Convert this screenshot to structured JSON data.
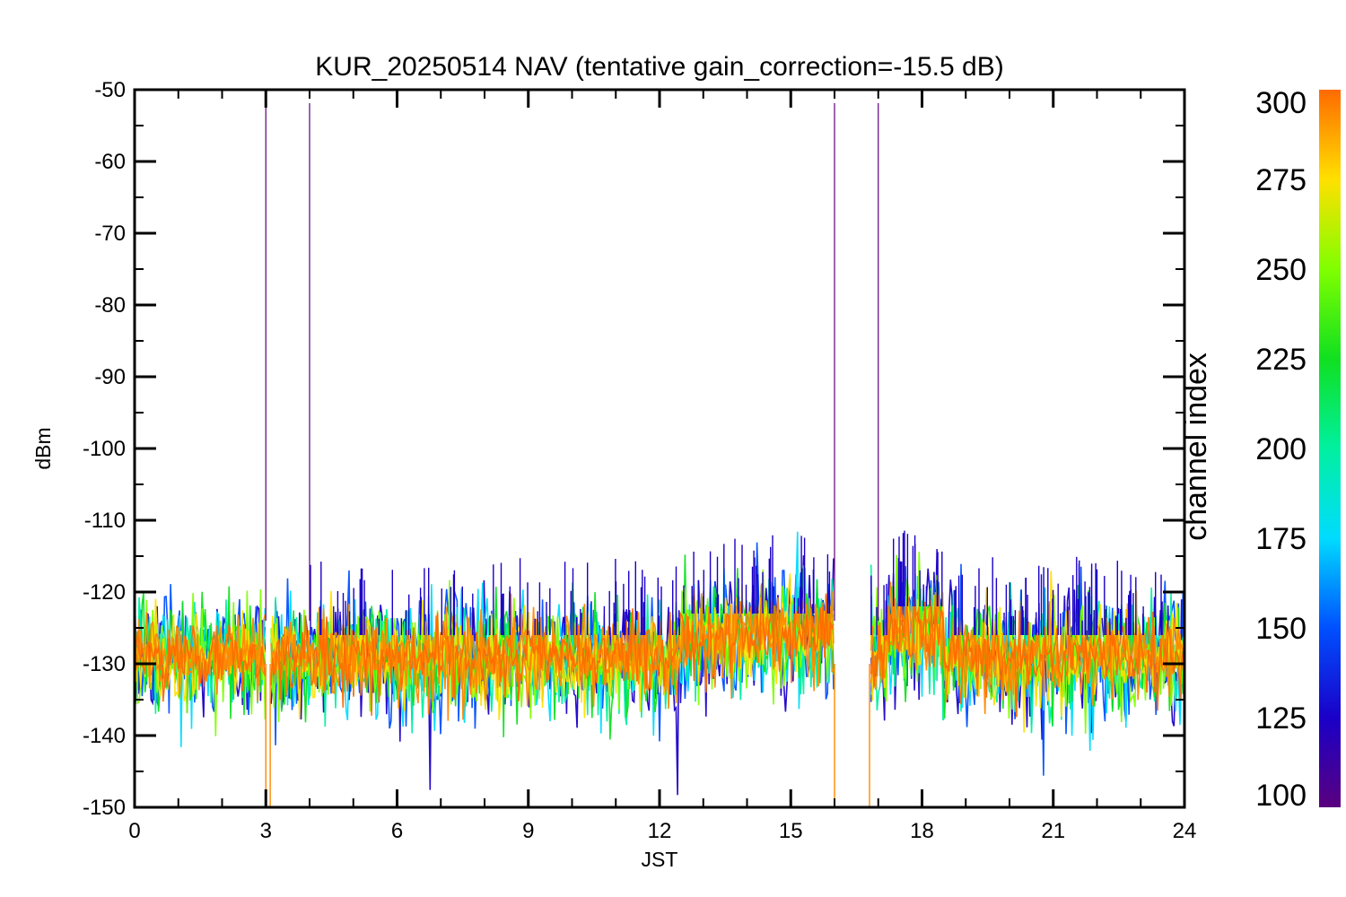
{
  "chart_data": {
    "type": "line",
    "title": "KUR_20250514 NAV (tentative gain_correction=-15.5 dB)",
    "xlabel": "JST",
    "ylabel": "dBm",
    "xlim": [
      0,
      24
    ],
    "ylim": [
      -150,
      -50
    ],
    "xticks": [
      "0",
      "3",
      "6",
      "9",
      "12",
      "15",
      "18",
      "21",
      "24"
    ],
    "yticks": [
      "-50",
      "-60",
      "-70",
      "-80",
      "-90",
      "-100",
      "-110",
      "-120",
      "-130",
      "-140",
      "-150"
    ],
    "colorbar": {
      "label": "channel index",
      "range": [
        100,
        300
      ],
      "ticks": [
        "300",
        "275",
        "250",
        "225",
        "200",
        "175",
        "150",
        "125",
        "100"
      ],
      "colormap": "rainbow"
    },
    "grid": false,
    "series": [
      {
        "channel_range": [
          100,
          300
        ],
        "typical_dBm": -128,
        "spread_dBm": [
          -142,
          -110
        ]
      }
    ],
    "data_gaps_JST": [
      [
        3.0,
        3.1
      ],
      [
        16.0,
        16.8
      ]
    ],
    "vertical_spikes_JST": [
      3.0,
      4.0,
      16.0,
      17.0
    ],
    "level_segments": [
      {
        "x": [
          0,
          12.5
        ],
        "center_dBm": -129
      },
      {
        "x": [
          12.5,
          16.0
        ],
        "center_dBm": -126
      },
      {
        "x": [
          16.8,
          17.2
        ],
        "center_dBm": -129
      },
      {
        "x": [
          17.2,
          18.5
        ],
        "center_dBm": -125
      },
      {
        "x": [
          18.5,
          24
        ],
        "center_dBm": -129
      }
    ],
    "colors": {
      "dominant": "#ff8800",
      "channel_100": "#5a007f",
      "channel_125": "#1a00c8",
      "channel_150": "#0050ff",
      "channel_175": "#00dcff",
      "channel_200": "#00f0a0",
      "channel_225": "#10e020",
      "channel_250": "#80ff00",
      "channel_275": "#ffe000",
      "channel_300": "#ff6a00"
    }
  }
}
